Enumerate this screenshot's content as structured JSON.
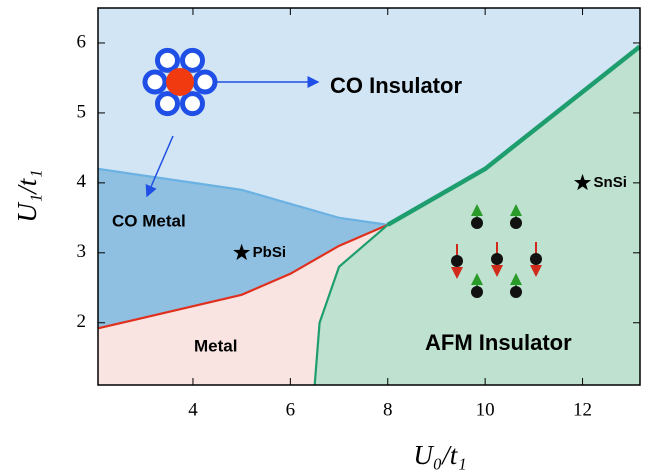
{
  "chart_data": {
    "type": "phase_diagram",
    "x_label": "U₀/t₁",
    "y_label": "U₁/t₁",
    "xlim": [
      2.05,
      13.18
    ],
    "ylim": [
      1.11,
      6.5
    ],
    "xticks": [
      4,
      6,
      8,
      10,
      12
    ],
    "yticks": [
      2,
      3,
      4,
      5,
      6
    ],
    "boundaries": [
      {
        "x": [
          2.05,
          5,
          7,
          8
        ],
        "y": [
          4.2,
          3.9,
          3.5,
          3.4
        ],
        "color": "#6bb2e2"
      },
      {
        "x": [
          2.05,
          5,
          6,
          7,
          8
        ],
        "y": [
          1.92,
          2.4,
          2.7,
          3.1,
          3.4
        ],
        "color": "#e0301e"
      },
      {
        "x": [
          8,
          7,
          6.6,
          6.5
        ],
        "y": [
          3.4,
          2.8,
          2.0,
          1.11
        ],
        "color": "#1e9e6e"
      },
      {
        "x": [
          8,
          10,
          13.18
        ],
        "y": [
          3.4,
          4.2,
          5.95
        ],
        "color": "#1e9e6e"
      }
    ],
    "regions": [
      {
        "label": "CO Insulator",
        "color": "#d1e5f4"
      },
      {
        "label": "CO Metal",
        "color": "#8fc0e2"
      },
      {
        "label": "Metal",
        "color": "#f9e4e1"
      },
      {
        "label": "AFM Insulator",
        "color": "#bfe1cf"
      }
    ],
    "points": [
      {
        "label": "PbSi",
        "x": 5,
        "y": 3
      },
      {
        "label": "SnSi",
        "x": 12,
        "y": 4
      }
    ]
  }
}
